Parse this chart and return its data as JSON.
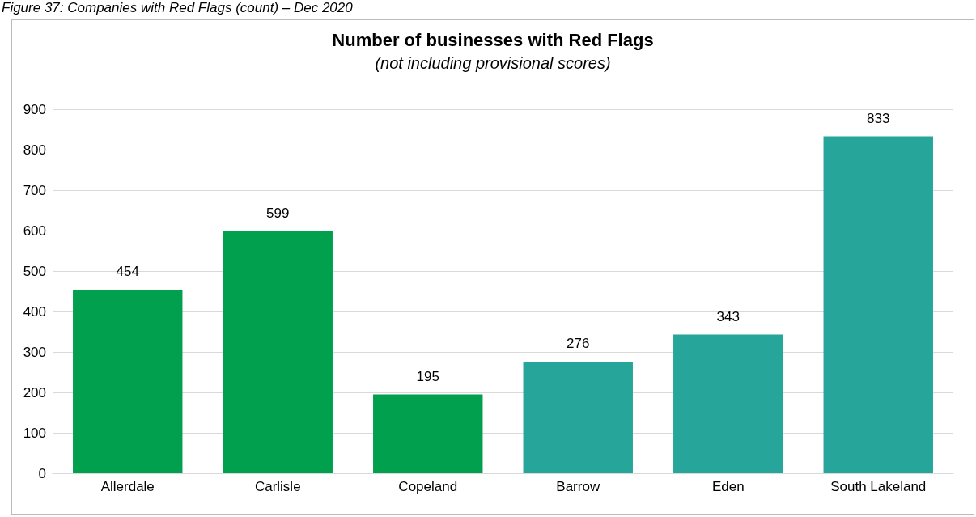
{
  "chart_data": {
    "type": "bar",
    "title": "Number of businesses with Red Flags",
    "subtitle": "(not including provisional scores)",
    "annotations": [
      "Figure 37: Companies with Red Flags (count) – Dec 2020"
    ],
    "categories": [
      "Allerdale",
      "Carlisle",
      "Copeland",
      "Barrow",
      "Eden",
      "South Lakeland"
    ],
    "values": [
      454,
      599,
      195,
      276,
      343,
      833
    ],
    "colors": [
      "#00a04f",
      "#00a04f",
      "#00a04f",
      "#26a69b",
      "#26a69b",
      "#26a69b"
    ],
    "ylim": [
      0,
      900
    ],
    "yticks": [
      0,
      100,
      200,
      300,
      400,
      500,
      600,
      700,
      800,
      900
    ],
    "grid": "y",
    "data_labels": true
  }
}
